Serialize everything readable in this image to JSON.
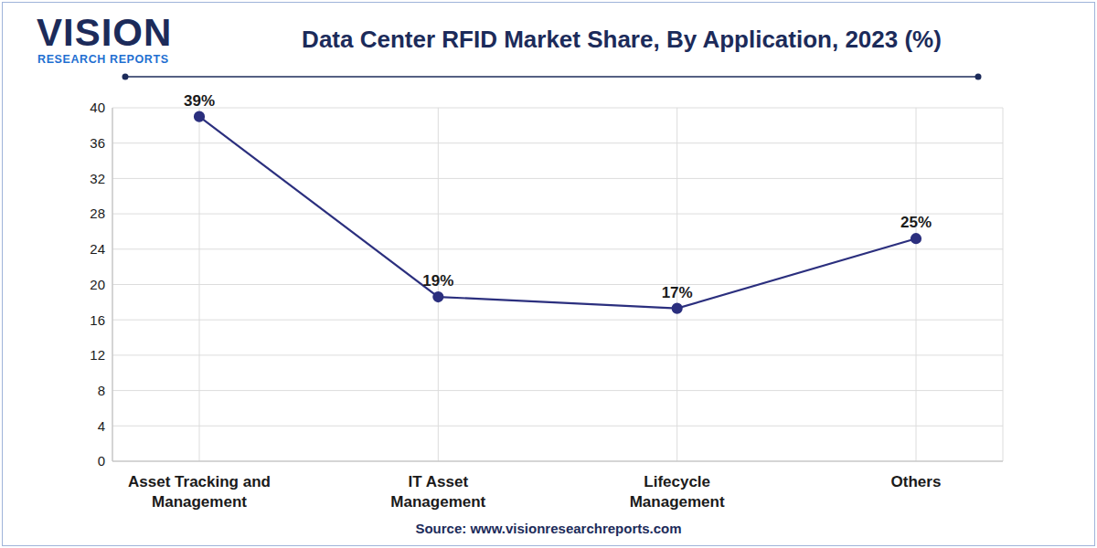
{
  "chart_data": {
    "type": "line",
    "title": "Data Center RFID Market Share, By Application, 2023 (%)",
    "logo": "VISION",
    "logo_subtitle": "RESEARCH REPORTS",
    "source": "Source: www.visionresearchreports.com",
    "categories": [
      "Asset Tracking and Management",
      "IT Asset Management",
      "Lifecycle Management",
      "Others"
    ],
    "values": [
      39,
      18.6,
      17.3,
      25.2
    ],
    "value_labels": [
      "39%",
      "19%",
      "17%",
      "25%"
    ],
    "color": "#2b2f7e",
    "marker": "circle",
    "ylim": [
      0,
      40
    ],
    "yticks": [
      0,
      4,
      8,
      12,
      16,
      20,
      24,
      28,
      32,
      36,
      40
    ],
    "grid": true,
    "data_labels": true
  }
}
